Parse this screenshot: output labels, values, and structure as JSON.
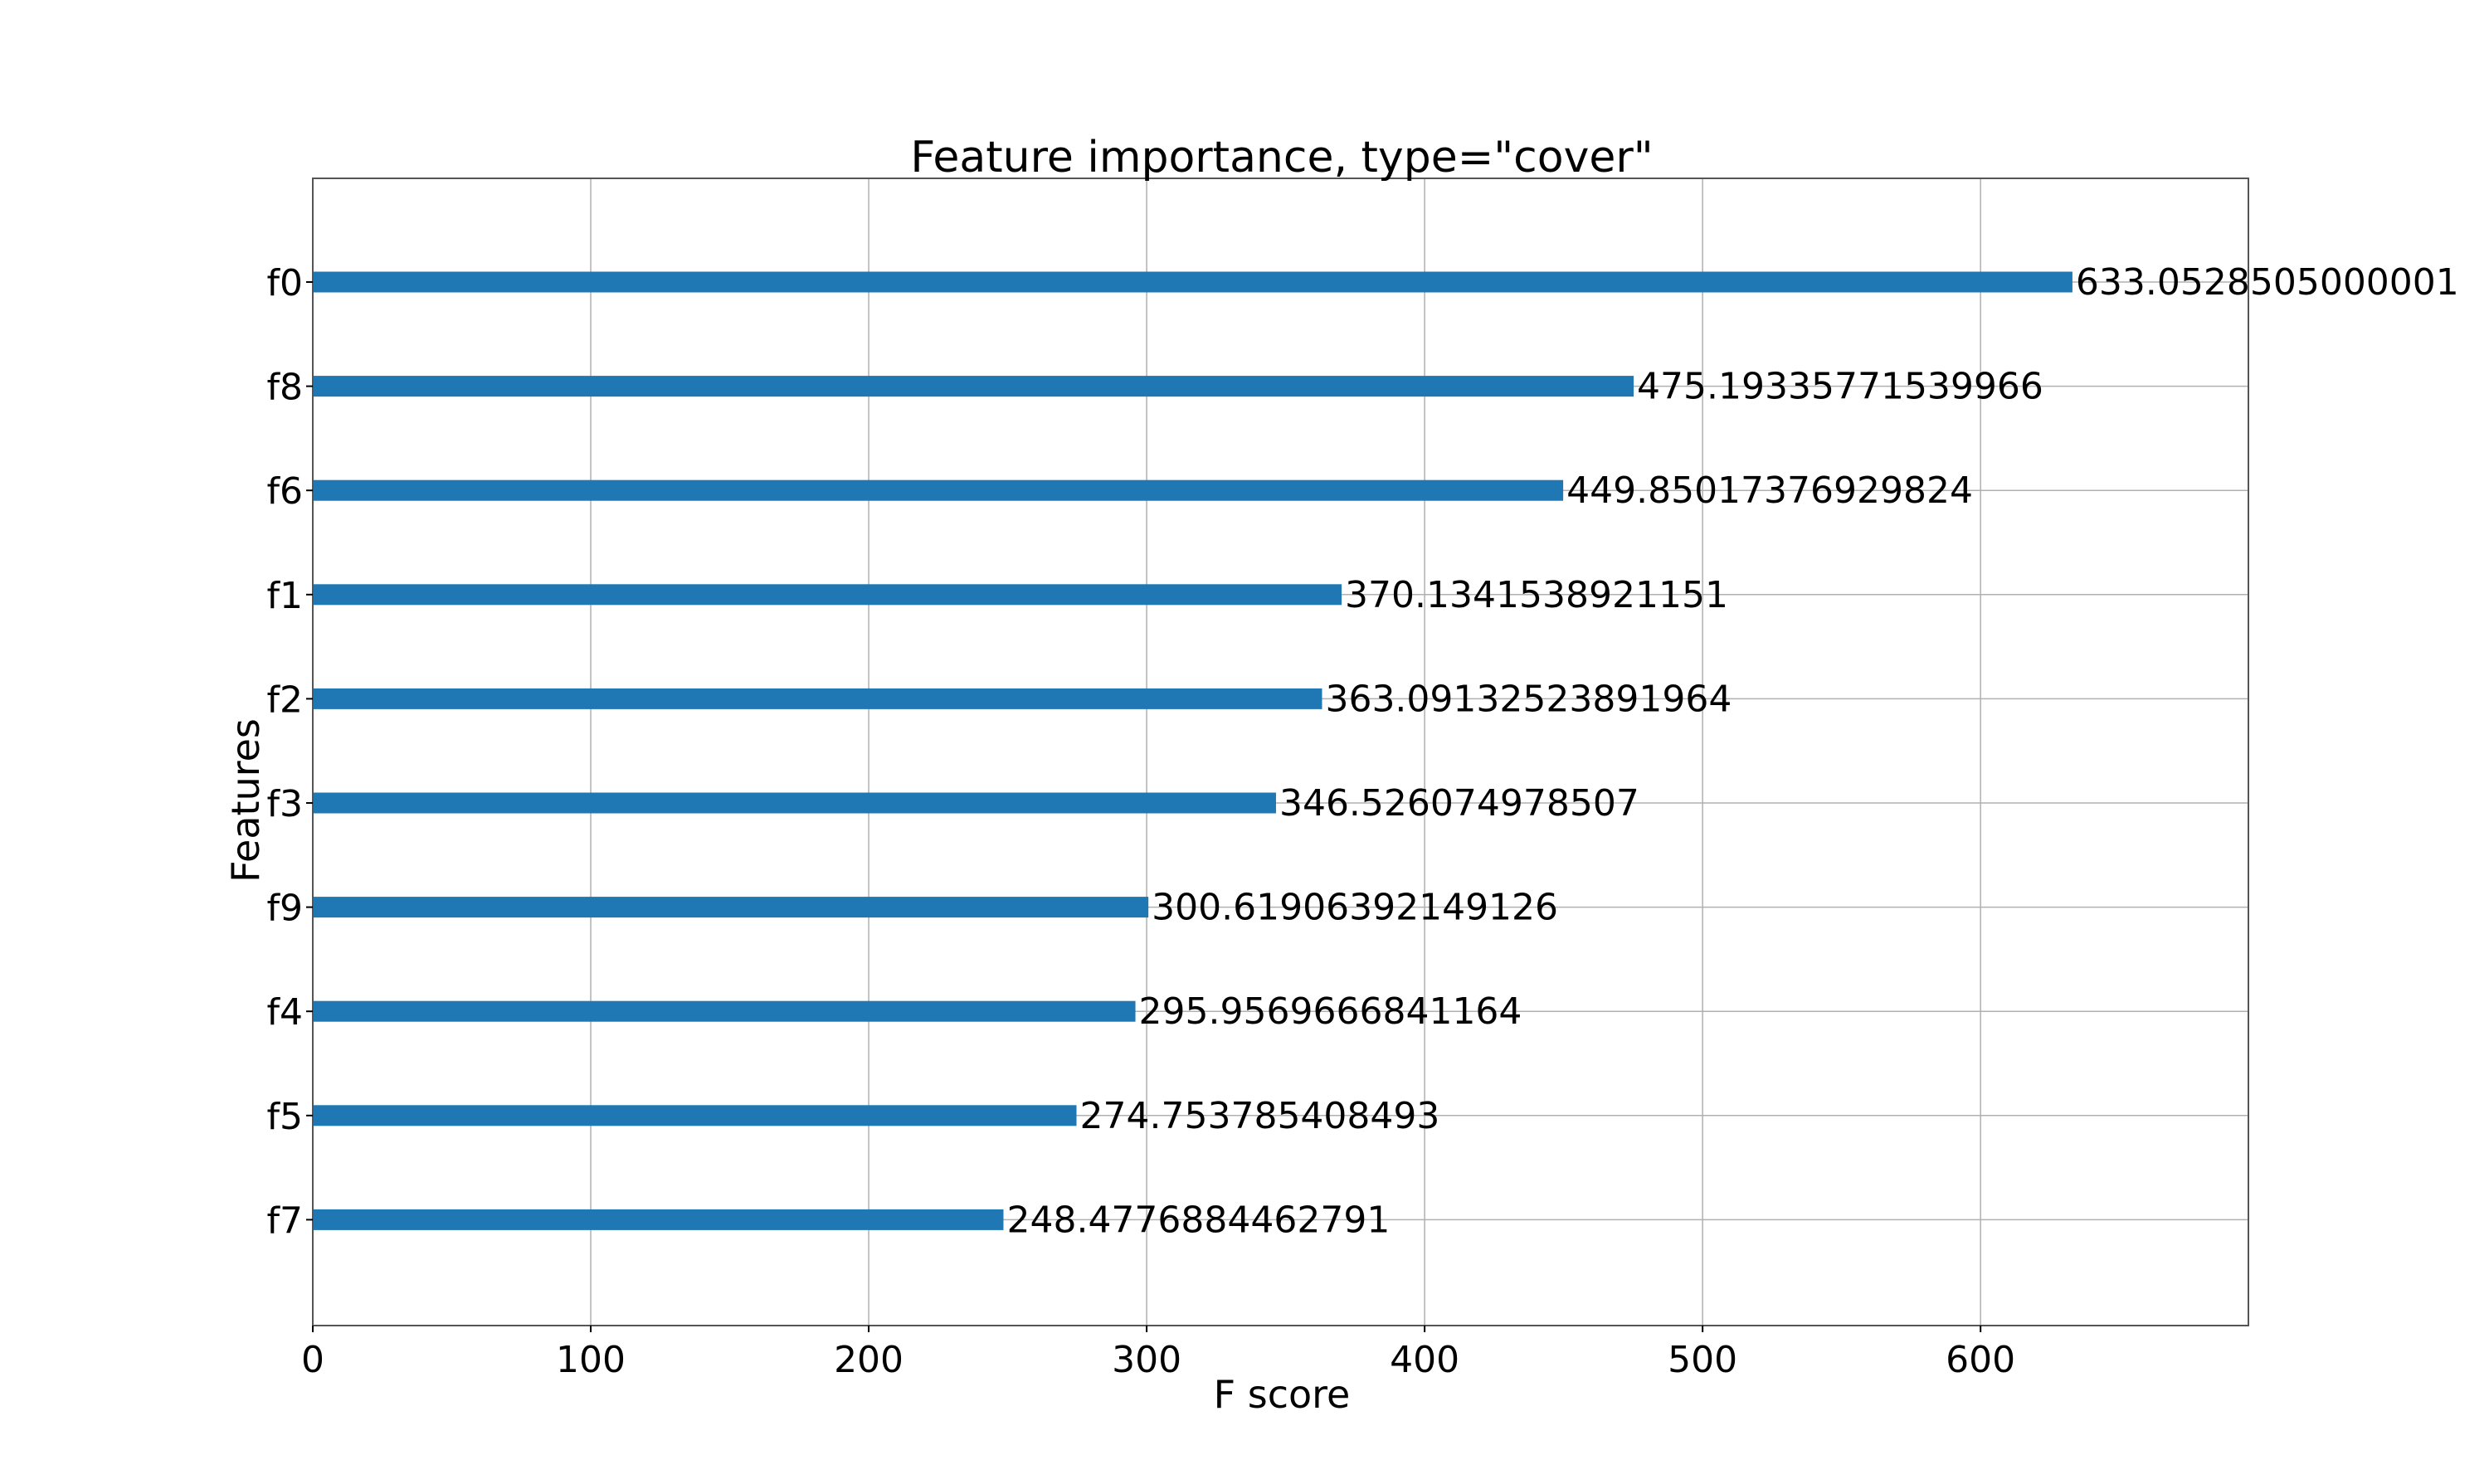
{
  "chart_data": {
    "type": "bar",
    "orientation": "horizontal",
    "title": "Feature importance, type=\"cover\"",
    "xlabel": "F score",
    "ylabel": "Features",
    "categories": [
      "f0",
      "f8",
      "f6",
      "f1",
      "f2",
      "f3",
      "f9",
      "f4",
      "f5",
      "f7"
    ],
    "values": [
      633.0528505000001,
      475.19335771539966,
      449.85017376929824,
      370.1341538921151,
      363.09132523891964,
      346.526074978507,
      300.61906392149126,
      295.9569666841164,
      274.753785408493,
      248.4776884462791
    ],
    "value_labels": [
      "633.0528505000001",
      "475.19335771539966",
      "449.85017376929824",
      "370.1341538921151",
      "363.09132523891964",
      "346.526074978507",
      "300.61906392149126",
      "295.9569666841164",
      "274.753785408493",
      "248.4776884462791"
    ],
    "xticks": [
      0,
      100,
      200,
      300,
      400,
      500,
      600
    ],
    "xtick_labels": [
      "0",
      "100",
      "200",
      "300",
      "400",
      "500",
      "600"
    ],
    "xlim": [
      0,
      696.36
    ],
    "grid": true,
    "bar_color": "#1f77b4",
    "grid_color": "#b0b0b0",
    "frame_color": "#555555"
  }
}
